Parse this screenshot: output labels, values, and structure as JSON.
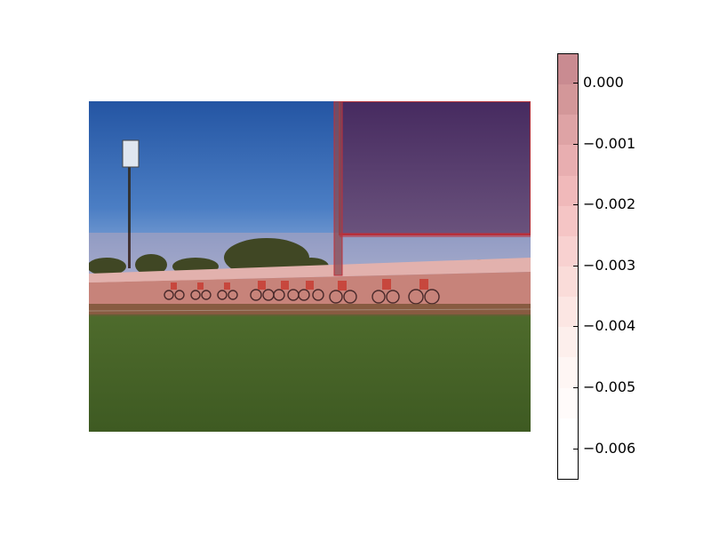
{
  "figure": {
    "image": {
      "description_icon": "photo-velodrome-cyclists-icon",
      "overlay_color": "#c0303a"
    },
    "colorbar": {
      "ticks": [
        "0.000",
        "−0.001",
        "−0.002",
        "−0.003",
        "−0.004",
        "−0.005",
        "−0.006"
      ],
      "bands": [
        "#c98b91",
        "#d39799",
        "#dea3a5",
        "#e8aeb0",
        "#f0b9ba",
        "#f5c5c5",
        "#f8d1d0",
        "#fadcd9",
        "#fce6e3",
        "#fdefec",
        "#fef6f4",
        "#fffbfa",
        "#ffffff",
        "#ffffff"
      ]
    }
  }
}
